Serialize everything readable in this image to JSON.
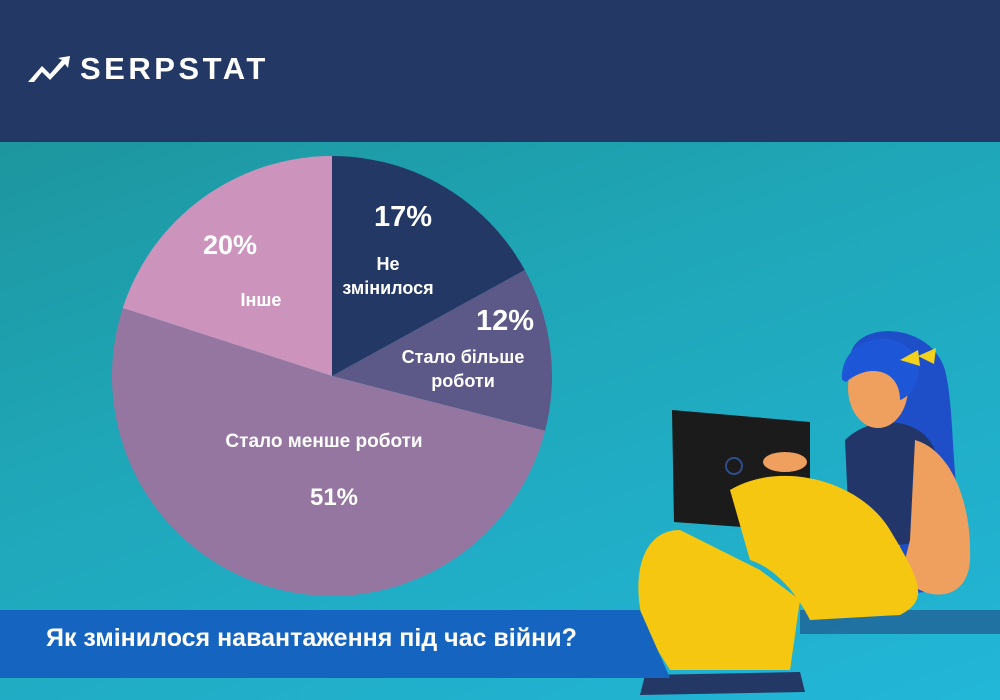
{
  "brand": {
    "name": "SERPSTAT",
    "logo_icon": "serpstat-arrow-icon"
  },
  "colors": {
    "header": "#233864",
    "banner": "#1565c0",
    "slice_no_change": "#233864",
    "slice_more_work": "#5c5888",
    "slice_less_work": "#9576a0",
    "slice_other": "#cc94bc"
  },
  "chart_data": {
    "type": "pie",
    "title": "Як змінилося навантаження під час війни?",
    "slices": [
      {
        "label": "Не змінилося",
        "value": 17,
        "value_label": "17%"
      },
      {
        "label": "Стало більше роботи",
        "value": 12,
        "value_label": "12%"
      },
      {
        "label": "Стало менше роботи",
        "value": 51,
        "value_label": "51%"
      },
      {
        "label": "Інше",
        "value": 20,
        "value_label": "20%"
      }
    ]
  },
  "illustration": {
    "icon": "woman-with-laptop-illustration"
  }
}
